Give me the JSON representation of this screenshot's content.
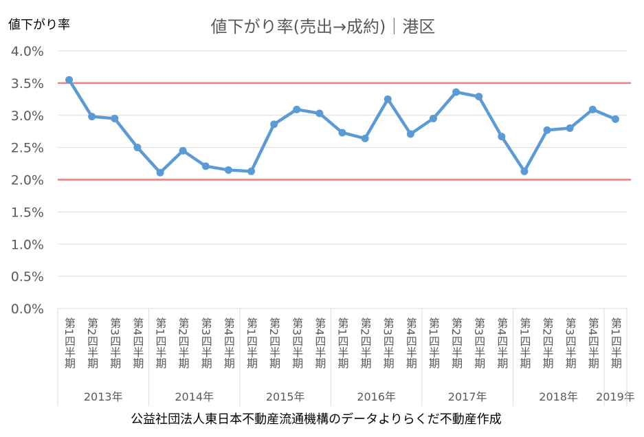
{
  "chart_data": {
    "type": "line",
    "title": "値下がり率(売出→成約)｜港区",
    "ylabel": "値下がり率",
    "xlabel": "",
    "ylim": [
      0,
      0.04
    ],
    "yticks": [
      "0.0%",
      "0.5%",
      "1.0%",
      "1.5%",
      "2.0%",
      "2.5%",
      "3.0%",
      "3.5%",
      "4.0%"
    ],
    "grid": true,
    "categories": [
      "第1四半期",
      "第2四半期",
      "第3四半期",
      "第4四半期",
      "第1四半期",
      "第2四半期",
      "第3四半期",
      "第4四半期",
      "第1四半期",
      "第2四半期",
      "第3四半期",
      "第4四半期",
      "第1四半期",
      "第2四半期",
      "第3四半期",
      "第4四半期",
      "第1四半期",
      "第2四半期",
      "第3四半期",
      "第4四半期",
      "第1四半期",
      "第2四半期",
      "第3四半期",
      "第4四半期",
      "第1四半期"
    ],
    "years": [
      "2013年",
      "2014年",
      "2015年",
      "2016年",
      "2017年",
      "2018年",
      "2019年"
    ],
    "year_quarter_counts": [
      4,
      4,
      4,
      4,
      4,
      4,
      1
    ],
    "series": [
      {
        "color": "#5B9BD5",
        "values": [
          0.0355,
          0.0298,
          0.0295,
          0.025,
          0.0211,
          0.0245,
          0.0221,
          0.0215,
          0.0213,
          0.0286,
          0.0309,
          0.0303,
          0.0273,
          0.0264,
          0.0325,
          0.0271,
          0.0295,
          0.0336,
          0.0329,
          0.0267,
          0.0213,
          0.0277,
          0.028,
          0.0309,
          0.0294
        ]
      }
    ],
    "reference_lines": [
      {
        "value": 0.035,
        "color": "#E88080"
      },
      {
        "value": 0.02,
        "color": "#E88080"
      }
    ]
  },
  "source_note": "公益社団法人東日本不動産流通機構のデータよりらくだ不動産作成"
}
